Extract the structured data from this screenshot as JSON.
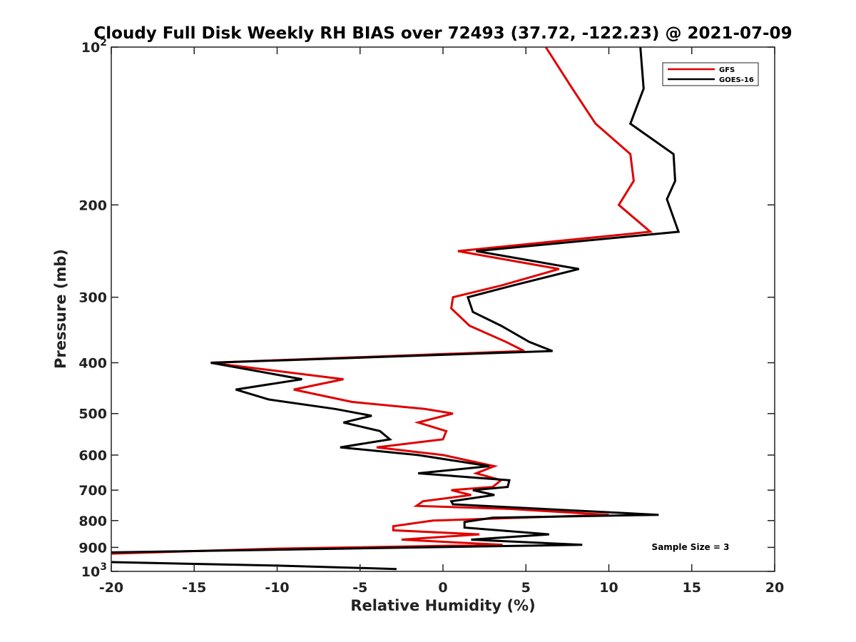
{
  "chart_data": {
    "type": "line",
    "title": "Cloudy Full Disk Weekly RH BIAS over 72493 (37.72, -122.23) @ 2021-07-09",
    "xlabel": "Relative Humidity (%)",
    "ylabel": "Pressure (mb)",
    "xlim": [
      -20,
      20
    ],
    "ylim": [
      100,
      1000
    ],
    "yscale": "log",
    "y_reversed": true,
    "x_ticks": [
      "-20",
      "-15",
      "-10",
      "-5",
      "0",
      "5",
      "10",
      "15",
      "20"
    ],
    "y_ticks": [
      {
        "value": 100,
        "base": "10",
        "exp": "2"
      },
      {
        "value": 200,
        "label": "200"
      },
      {
        "value": 300,
        "label": "300"
      },
      {
        "value": 400,
        "label": "400"
      },
      {
        "value": 500,
        "label": "500"
      },
      {
        "value": 600,
        "label": "600"
      },
      {
        "value": 700,
        "label": "700"
      },
      {
        "value": 800,
        "label": "800"
      },
      {
        "value": 900,
        "label": "900"
      },
      {
        "value": 1000,
        "base": "10",
        "exp": "3"
      }
    ],
    "legend_position": "top-right",
    "annotation": "Sample Size = 3",
    "series": [
      {
        "name": "GFS",
        "color": "#e00000",
        "points": [
          [
            6.2,
            100
          ],
          [
            7.8,
            120
          ],
          [
            9.2,
            140
          ],
          [
            11.3,
            160
          ],
          [
            11.5,
            180
          ],
          [
            10.6,
            200
          ],
          [
            12.5,
            225
          ],
          [
            0.9,
            245
          ],
          [
            7.0,
            265
          ],
          [
            3.5,
            285
          ],
          [
            0.6,
            300
          ],
          [
            0.5,
            315
          ],
          [
            1.6,
            340
          ],
          [
            3.8,
            365
          ],
          [
            4.9,
            380
          ],
          [
            -14.0,
            400
          ],
          [
            -6.0,
            430
          ],
          [
            -9.0,
            450
          ],
          [
            -5.5,
            475
          ],
          [
            -1.1,
            490
          ],
          [
            0.6,
            500
          ],
          [
            -1.5,
            520
          ],
          [
            0.2,
            540
          ],
          [
            0.0,
            560
          ],
          [
            -4.0,
            580
          ],
          [
            0.0,
            600
          ],
          [
            3.1,
            630
          ],
          [
            2.0,
            650
          ],
          [
            3.5,
            670
          ],
          [
            3.0,
            690
          ],
          [
            0.5,
            700
          ],
          [
            1.7,
            715
          ],
          [
            -1.2,
            735
          ],
          [
            -1.6,
            750
          ],
          [
            4.0,
            760
          ],
          [
            10.0,
            780
          ],
          [
            -0.6,
            800
          ],
          [
            -3.0,
            820
          ],
          [
            -3.0,
            835
          ],
          [
            2.2,
            850
          ],
          [
            -2.5,
            870
          ],
          [
            3.6,
            890
          ],
          [
            -10.0,
            905
          ],
          [
            -20.0,
            925
          ]
        ]
      },
      {
        "name": "GOES-16",
        "color": "#000000",
        "points": [
          [
            11.9,
            100
          ],
          [
            12.1,
            120
          ],
          [
            11.3,
            140
          ],
          [
            13.9,
            160
          ],
          [
            14.0,
            180
          ],
          [
            13.5,
            195
          ],
          [
            14.2,
            225
          ],
          [
            2.0,
            245
          ],
          [
            8.2,
            265
          ],
          [
            4.2,
            285
          ],
          [
            1.5,
            300
          ],
          [
            1.8,
            320
          ],
          [
            3.5,
            340
          ],
          [
            5.2,
            365
          ],
          [
            6.6,
            380
          ],
          [
            -14.0,
            400
          ],
          [
            -8.5,
            430
          ],
          [
            -12.5,
            450
          ],
          [
            -10.5,
            470
          ],
          [
            -6.5,
            490
          ],
          [
            -4.3,
            505
          ],
          [
            -6.0,
            520
          ],
          [
            -3.8,
            540
          ],
          [
            -3.2,
            560
          ],
          [
            -6.2,
            580
          ],
          [
            -1.5,
            600
          ],
          [
            2.8,
            630
          ],
          [
            -1.5,
            650
          ],
          [
            4.0,
            670
          ],
          [
            3.9,
            690
          ],
          [
            1.8,
            700
          ],
          [
            3.1,
            715
          ],
          [
            0.5,
            735
          ],
          [
            0.6,
            745
          ],
          [
            13.0,
            780
          ],
          [
            3.0,
            790
          ],
          [
            1.3,
            805
          ],
          [
            1.3,
            825
          ],
          [
            6.4,
            850
          ],
          [
            1.7,
            870
          ],
          [
            8.4,
            890
          ],
          [
            -6.0,
            905
          ],
          [
            -20.0,
            920
          ]
        ]
      },
      {
        "name": "",
        "color": "#000000",
        "points": [
          [
            -20.0,
            960
          ],
          [
            -10.0,
            975
          ],
          [
            -5.0,
            985
          ],
          [
            -2.8,
            990
          ]
        ]
      }
    ]
  }
}
